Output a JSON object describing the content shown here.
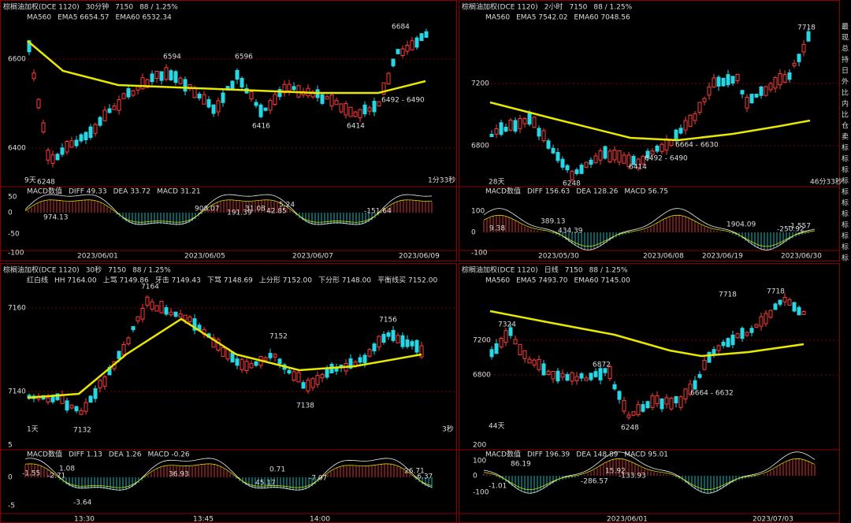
{
  "panels": [
    {
      "header": {
        "title": "棕榈油加权(DCE 1120)",
        "period": "30分钟",
        "price": "7150",
        "change": "88 / 1.25%"
      },
      "indicators": [
        "MA560",
        "EMA5 6654.57",
        "EMA60 6532.34"
      ],
      "price_axis": [
        "6600",
        "6400"
      ],
      "annotations": [
        "6684",
        "6594",
        "6596",
        "6416",
        "6414",
        "6248",
        "6492 - 6490",
        "9天",
        "1分33秒"
      ],
      "macd": {
        "label": "MACD数值",
        "diff": "DIFF 49.33",
        "dea": "DEA 33.72",
        "macd": "MACD 31.21",
        "axis": [
          "50",
          "0",
          "-50",
          "-100"
        ],
        "annotations": [
          "974.13",
          "908.07",
          "191.39",
          "31.08",
          "42.85",
          "5.24",
          "-151.64"
        ]
      },
      "dates": [
        "2023/06/01",
        "2023/06/05",
        "2023/06/07",
        "2023/06/09"
      ]
    },
    {
      "header": {
        "title": "棕榈油加权(DCE 1120)",
        "period": "2小时",
        "price": "7150",
        "change": "88 / 1.25%"
      },
      "indicators": [
        "MA560",
        "EMA5 7542.02",
        "EMA60 7048.56"
      ],
      "price_axis": [
        "7200",
        "6800"
      ],
      "annotations": [
        "7718",
        "6664 - 6630",
        "6492 - 6490",
        "6414",
        "6248",
        "28天",
        "46分33秒"
      ],
      "macd": {
        "label": "MACD数值",
        "diff": "DIFF 156.63",
        "dea": "DEA 128.26",
        "macd": "MACD 56.75",
        "axis": [
          "100",
          "0",
          "-100"
        ],
        "annotations": [
          "9.38",
          "389.13",
          "434.39",
          "1904.09",
          "-250.92",
          "-1.557"
        ]
      },
      "dates": [
        "2023/05/30",
        "2023/06/08",
        "2023/06/19",
        "2023/06/30"
      ]
    },
    {
      "header": {
        "title": "棕榈油加权(DCE 1120)",
        "period": "30秒",
        "price": "7150",
        "change": "88 / 1.25%"
      },
      "indicators": [
        "红白线",
        "HH 7164.00",
        "上骂 7149.86",
        "牙击 7149.43",
        "下骂 7148.69",
        "上分形 7152.00",
        "下分形 7148.00",
        "平衡线买 7152.00"
      ],
      "price_axis": [
        "7160",
        "7140"
      ],
      "annotations": [
        "7164",
        "7152",
        "7156",
        "7138",
        "7132",
        "1天",
        "3秒"
      ],
      "macd": {
        "label": "MACD数值",
        "diff": "DIFF 1.13",
        "dea": "DEA 1.26",
        "macd": "MACD -0.26",
        "axis": [
          "5",
          "0",
          "-5"
        ],
        "annotations": [
          "-1.55",
          "-2.71",
          "1.08",
          "-3.64",
          "36.93",
          "45.17",
          "0.71",
          "-7.07",
          "26.71",
          "-6.37"
        ]
      },
      "dates": [
        "13:30",
        "13:45",
        "14:00"
      ]
    },
    {
      "header": {
        "title": "棕榈油加权(DCE 1120)",
        "period": "日线",
        "price": "7150",
        "change": "88 / 1.25%"
      },
      "indicators": [
        "MA560",
        "EMA5 7493.70",
        "EMA60 7145.00"
      ],
      "price_axis": [
        "7200",
        "6800"
      ],
      "annotations": [
        "7718",
        "7718",
        "7324",
        "6872",
        "6664 - 6632",
        "6248",
        "44天"
      ],
      "macd": {
        "label": "MACD数值",
        "diff": "DIFF 196.39",
        "dea": "DEA 148.89",
        "macd": "MACD 95.01",
        "axis": [
          "200",
          "100",
          "0",
          "-100"
        ],
        "annotations": [
          "86.19",
          "-1.01",
          "-286.57",
          "15.92",
          "-133.93"
        ]
      },
      "dates": [
        "2023/06/01",
        "2023/07/03"
      ]
    }
  ],
  "side": [
    "最",
    "现",
    "总",
    "持",
    "日",
    "外",
    "比",
    "内",
    "比",
    "仓",
    "卖",
    "标",
    "标",
    "标",
    "标",
    "标",
    "标",
    "标",
    "标",
    "标",
    "标",
    "标"
  ]
}
